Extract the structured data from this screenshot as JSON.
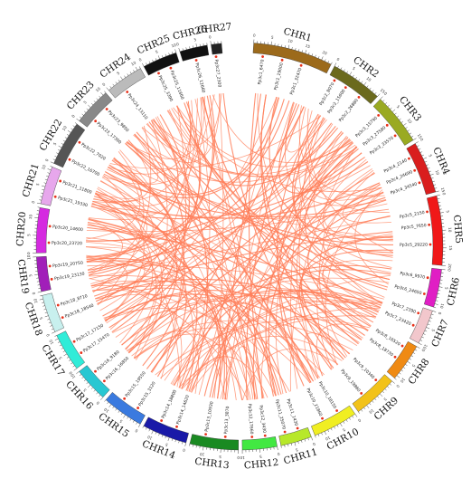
{
  "link_color": "#ff7f5a",
  "marker_color": "#e8311a",
  "chromosomes": [
    {
      "name": "CHR1",
      "len": 23,
      "color": "#9c6a1b"
    },
    {
      "name": "CHR2",
      "len": 15,
      "color": "#6b6a1d"
    },
    {
      "name": "CHR3",
      "len": 15,
      "color": "#9aaa22"
    },
    {
      "name": "CHR4",
      "len": 15,
      "color": "#d91e1e"
    },
    {
      "name": "CHR5",
      "len": 20,
      "color": "#f01818"
    },
    {
      "name": "CHR6",
      "len": 11,
      "color": "#e01ec4"
    },
    {
      "name": "CHR7",
      "len": 10,
      "color": "#f2c7cc"
    },
    {
      "name": "CHR8",
      "len": 11,
      "color": "#ef8a14"
    },
    {
      "name": "CHR9",
      "len": 13,
      "color": "#f2c218"
    },
    {
      "name": "CHR10",
      "len": 13,
      "color": "#f0ee22"
    },
    {
      "name": "CHR11",
      "len": 9,
      "color": "#b7e82a"
    },
    {
      "name": "CHR12",
      "len": 10,
      "color": "#42e842"
    },
    {
      "name": "CHR13",
      "len": 14,
      "color": "#1a8a22"
    },
    {
      "name": "CHR14",
      "len": 13,
      "color": "#1a1aa8"
    },
    {
      "name": "CHR15",
      "len": 12,
      "color": "#3a7adf"
    },
    {
      "name": "CHR16",
      "len": 10,
      "color": "#28c7d2"
    },
    {
      "name": "CHR17",
      "len": 11,
      "color": "#30ecd8"
    },
    {
      "name": "CHR18",
      "len": 11,
      "color": "#c8f0ee"
    },
    {
      "name": "CHR19",
      "len": 10,
      "color": "#a11fb9"
    },
    {
      "name": "CHR20",
      "len": 13,
      "color": "#d52ae0"
    },
    {
      "name": "CHR21",
      "len": 11,
      "color": "#e7a7ec"
    },
    {
      "name": "CHR22",
      "len": 13,
      "color": "#555555"
    },
    {
      "name": "CHR23",
      "len": 11,
      "color": "#888888"
    },
    {
      "name": "CHR24",
      "len": 11,
      "color": "#bbbbbb"
    },
    {
      "name": "CHR25",
      "len": 10,
      "color": "#111111"
    },
    {
      "name": "CHR26",
      "len": 8,
      "color": "#111111"
    },
    {
      "name": "CHR27",
      "len": 3,
      "color": "#222222"
    }
  ],
  "genes": [
    {
      "chr": 0,
      "pos": 3,
      "label": "Pp3c1_6470"
    },
    {
      "chr": 0,
      "pos": 9,
      "label": "Pp3c1_19000"
    },
    {
      "chr": 0,
      "pos": 15,
      "label": "Pp3c1_32470"
    },
    {
      "chr": 1,
      "pos": 2,
      "label": "Pp3c2_8070"
    },
    {
      "chr": 1,
      "pos": 6,
      "label": "Pp3c2_15600"
    },
    {
      "chr": 1,
      "pos": 11,
      "label": "Pp3c2_26880"
    },
    {
      "chr": 2,
      "pos": 3,
      "label": "Pp3c3_15790"
    },
    {
      "chr": 2,
      "pos": 7,
      "label": "Pp3c3_27580"
    },
    {
      "chr": 2,
      "pos": 11,
      "label": "Pp3c3_33570"
    },
    {
      "chr": 3,
      "pos": 3,
      "label": "Pp3c4_2140"
    },
    {
      "chr": 3,
      "pos": 7,
      "label": "Pp3c4_24690"
    },
    {
      "chr": 3,
      "pos": 11,
      "label": "Pp3c4_34540"
    },
    {
      "chr": 4,
      "pos": 4,
      "label": "Pp3c5_2150"
    },
    {
      "chr": 4,
      "pos": 8,
      "label": "Pp3c5_7650"
    },
    {
      "chr": 4,
      "pos": 14,
      "label": "Pp3c5_29220"
    },
    {
      "chr": 5,
      "pos": 3,
      "label": "Pp3c6_9970"
    },
    {
      "chr": 5,
      "pos": 8,
      "label": "Pp3c6_24650"
    },
    {
      "chr": 6,
      "pos": 2,
      "label": "Pp3c7_2390"
    },
    {
      "chr": 6,
      "pos": 6,
      "label": "Pp3c7_23420"
    },
    {
      "chr": 7,
      "pos": 2,
      "label": "Pp3c8_16520"
    },
    {
      "chr": 7,
      "pos": 6,
      "label": "Pp3c8_18730"
    },
    {
      "chr": 8,
      "pos": 3,
      "label": "Pp3c9_10340"
    },
    {
      "chr": 8,
      "pos": 9,
      "label": "Pp3c9_19860"
    },
    {
      "chr": 9,
      "pos": 4,
      "label": "Pp3c10_18150"
    },
    {
      "chr": 9,
      "pos": 9,
      "label": "Pp3c10_21860"
    },
    {
      "chr": 10,
      "pos": 3,
      "label": "Pp3c11_1430"
    },
    {
      "chr": 10,
      "pos": 7,
      "label": "Pp3c11_25070"
    },
    {
      "chr": 11,
      "pos": 3,
      "label": "Pp3c12_3430"
    },
    {
      "chr": 11,
      "pos": 7,
      "label": "Pp3c12_17660"
    },
    {
      "chr": 12,
      "pos": 4,
      "label": "Pp3c13_3870"
    },
    {
      "chr": 12,
      "pos": 10,
      "label": "Pp3c13_10930"
    },
    {
      "chr": 13,
      "pos": 4,
      "label": "Pp3c14_14620"
    },
    {
      "chr": 13,
      "pos": 9,
      "label": "Pp3c14_18800"
    },
    {
      "chr": 14,
      "pos": 3,
      "label": "Pp3c15_3120"
    },
    {
      "chr": 14,
      "pos": 8,
      "label": "Pp3c15_19550"
    },
    {
      "chr": 15,
      "pos": 3,
      "label": "Pp3c16_16850"
    },
    {
      "chr": 15,
      "pos": 7,
      "label": "Pp3c16_9180"
    },
    {
      "chr": 16,
      "pos": 3,
      "label": "Pp3c17_15470"
    },
    {
      "chr": 16,
      "pos": 7,
      "label": "Pp3c17_17150"
    },
    {
      "chr": 17,
      "pos": 3,
      "label": "Pp3c18_18540"
    },
    {
      "chr": 17,
      "pos": 7,
      "label": "Pp3c18_8710"
    },
    {
      "chr": 18,
      "pos": 3,
      "label": "Pp3c19_23130"
    },
    {
      "chr": 18,
      "pos": 7,
      "label": "Pp3c19_20750"
    },
    {
      "chr": 19,
      "pos": 3,
      "label": "Pp3c20_23720"
    },
    {
      "chr": 19,
      "pos": 8,
      "label": "Pp3c20_14600"
    },
    {
      "chr": 20,
      "pos": 3,
      "label": "Pp3c21_19330"
    },
    {
      "chr": 20,
      "pos": 8,
      "label": "Pp3c21_11800"
    },
    {
      "chr": 21,
      "pos": 3,
      "label": "Pp3c22_16700"
    },
    {
      "chr": 21,
      "pos": 9,
      "label": "Pp3c22_7020"
    },
    {
      "chr": 22,
      "pos": 3,
      "label": "Pp3c23_17300"
    },
    {
      "chr": 22,
      "pos": 8,
      "label": "Pp3c23_9850"
    },
    {
      "chr": 23,
      "pos": 4,
      "label": "Pp3c24_13110"
    },
    {
      "chr": 24,
      "pos": 3,
      "label": "Pp3c25_3390"
    },
    {
      "chr": 24,
      "pos": 7,
      "label": "Pp3c25_11660"
    },
    {
      "chr": 25,
      "pos": 4,
      "label": "Pp3c26_12660"
    },
    {
      "chr": 26,
      "pos": 1,
      "label": "Pp3c27_2300"
    }
  ],
  "links": [
    [
      0,
      4,
      12,
      8
    ],
    [
      0,
      10,
      4,
      12
    ],
    [
      0,
      15,
      19,
      4
    ],
    [
      0,
      19,
      14,
      6
    ],
    [
      0,
      6,
      8,
      5
    ],
    [
      0,
      13,
      21,
      4
    ],
    [
      1,
      3,
      9,
      7
    ],
    [
      1,
      9,
      16,
      5
    ],
    [
      1,
      12,
      23,
      4
    ],
    [
      1,
      6,
      5,
      6
    ],
    [
      2,
      4,
      13,
      7
    ],
    [
      2,
      9,
      18,
      4
    ],
    [
      2,
      13,
      0,
      18
    ],
    [
      3,
      2,
      11,
      5
    ],
    [
      3,
      6,
      20,
      7
    ],
    [
      3,
      10,
      15,
      4
    ],
    [
      3,
      13,
      7,
      4
    ],
    [
      4,
      3,
      12,
      10
    ],
    [
      4,
      9,
      17,
      6
    ],
    [
      4,
      14,
      22,
      5
    ],
    [
      4,
      18,
      1,
      4
    ],
    [
      5,
      2,
      14,
      6
    ],
    [
      5,
      6,
      24,
      4
    ],
    [
      5,
      9,
      2,
      6
    ],
    [
      6,
      3,
      19,
      9
    ],
    [
      6,
      7,
      13,
      3
    ],
    [
      7,
      2,
      21,
      8
    ],
    [
      7,
      8,
      0,
      6
    ],
    [
      8,
      3,
      16,
      8
    ],
    [
      8,
      9,
      4,
      16
    ],
    [
      9,
      4,
      20,
      4
    ],
    [
      9,
      10,
      1,
      14
    ],
    [
      10,
      3,
      18,
      8
    ],
    [
      10,
      7,
      3,
      8
    ],
    [
      11,
      4,
      22,
      4
    ],
    [
      11,
      8,
      0,
      21
    ],
    [
      12,
      5,
      17,
      3
    ],
    [
      12,
      11,
      2,
      2
    ],
    [
      13,
      4,
      23,
      6
    ],
    [
      13,
      10,
      5,
      4
    ],
    [
      14,
      3,
      19,
      11
    ],
    [
      14,
      8,
      6,
      8
    ],
    [
      15,
      4,
      20,
      9
    ],
    [
      15,
      8,
      8,
      11
    ],
    [
      16,
      3,
      21,
      11
    ],
    [
      16,
      8,
      9,
      6
    ],
    [
      17,
      4,
      24,
      7
    ],
    [
      17,
      8,
      10,
      6
    ],
    [
      18,
      3,
      25,
      5
    ],
    [
      18,
      7,
      11,
      5
    ],
    [
      19,
      4,
      1,
      11
    ],
    [
      19,
      10,
      12,
      6
    ],
    [
      20,
      3,
      2,
      11
    ],
    [
      20,
      8,
      13,
      8
    ],
    [
      21,
      5,
      3,
      12
    ],
    [
      21,
      10,
      14,
      10
    ],
    [
      22,
      4,
      4,
      17
    ],
    [
      22,
      9,
      15,
      8
    ],
    [
      23,
      5,
      5,
      10
    ],
    [
      23,
      9,
      16,
      10
    ],
    [
      24,
      4,
      6,
      9
    ],
    [
      24,
      8,
      17,
      10
    ],
    [
      25,
      3,
      7,
      10
    ],
    [
      25,
      6,
      18,
      9
    ],
    [
      26,
      2,
      8,
      12
    ],
    [
      0,
      2,
      11,
      2
    ],
    [
      0,
      21,
      18,
      2
    ],
    [
      2,
      6,
      10,
      8
    ],
    [
      4,
      11,
      8,
      6
    ],
    [
      6,
      5,
      12,
      13
    ],
    [
      9,
      7,
      22,
      10
    ],
    [
      12,
      8,
      19,
      12
    ],
    [
      15,
      6,
      2,
      7
    ],
    [
      17,
      5,
      7,
      6
    ],
    [
      20,
      5,
      10,
      5
    ],
    [
      21,
      7,
      0,
      11
    ]
  ]
}
